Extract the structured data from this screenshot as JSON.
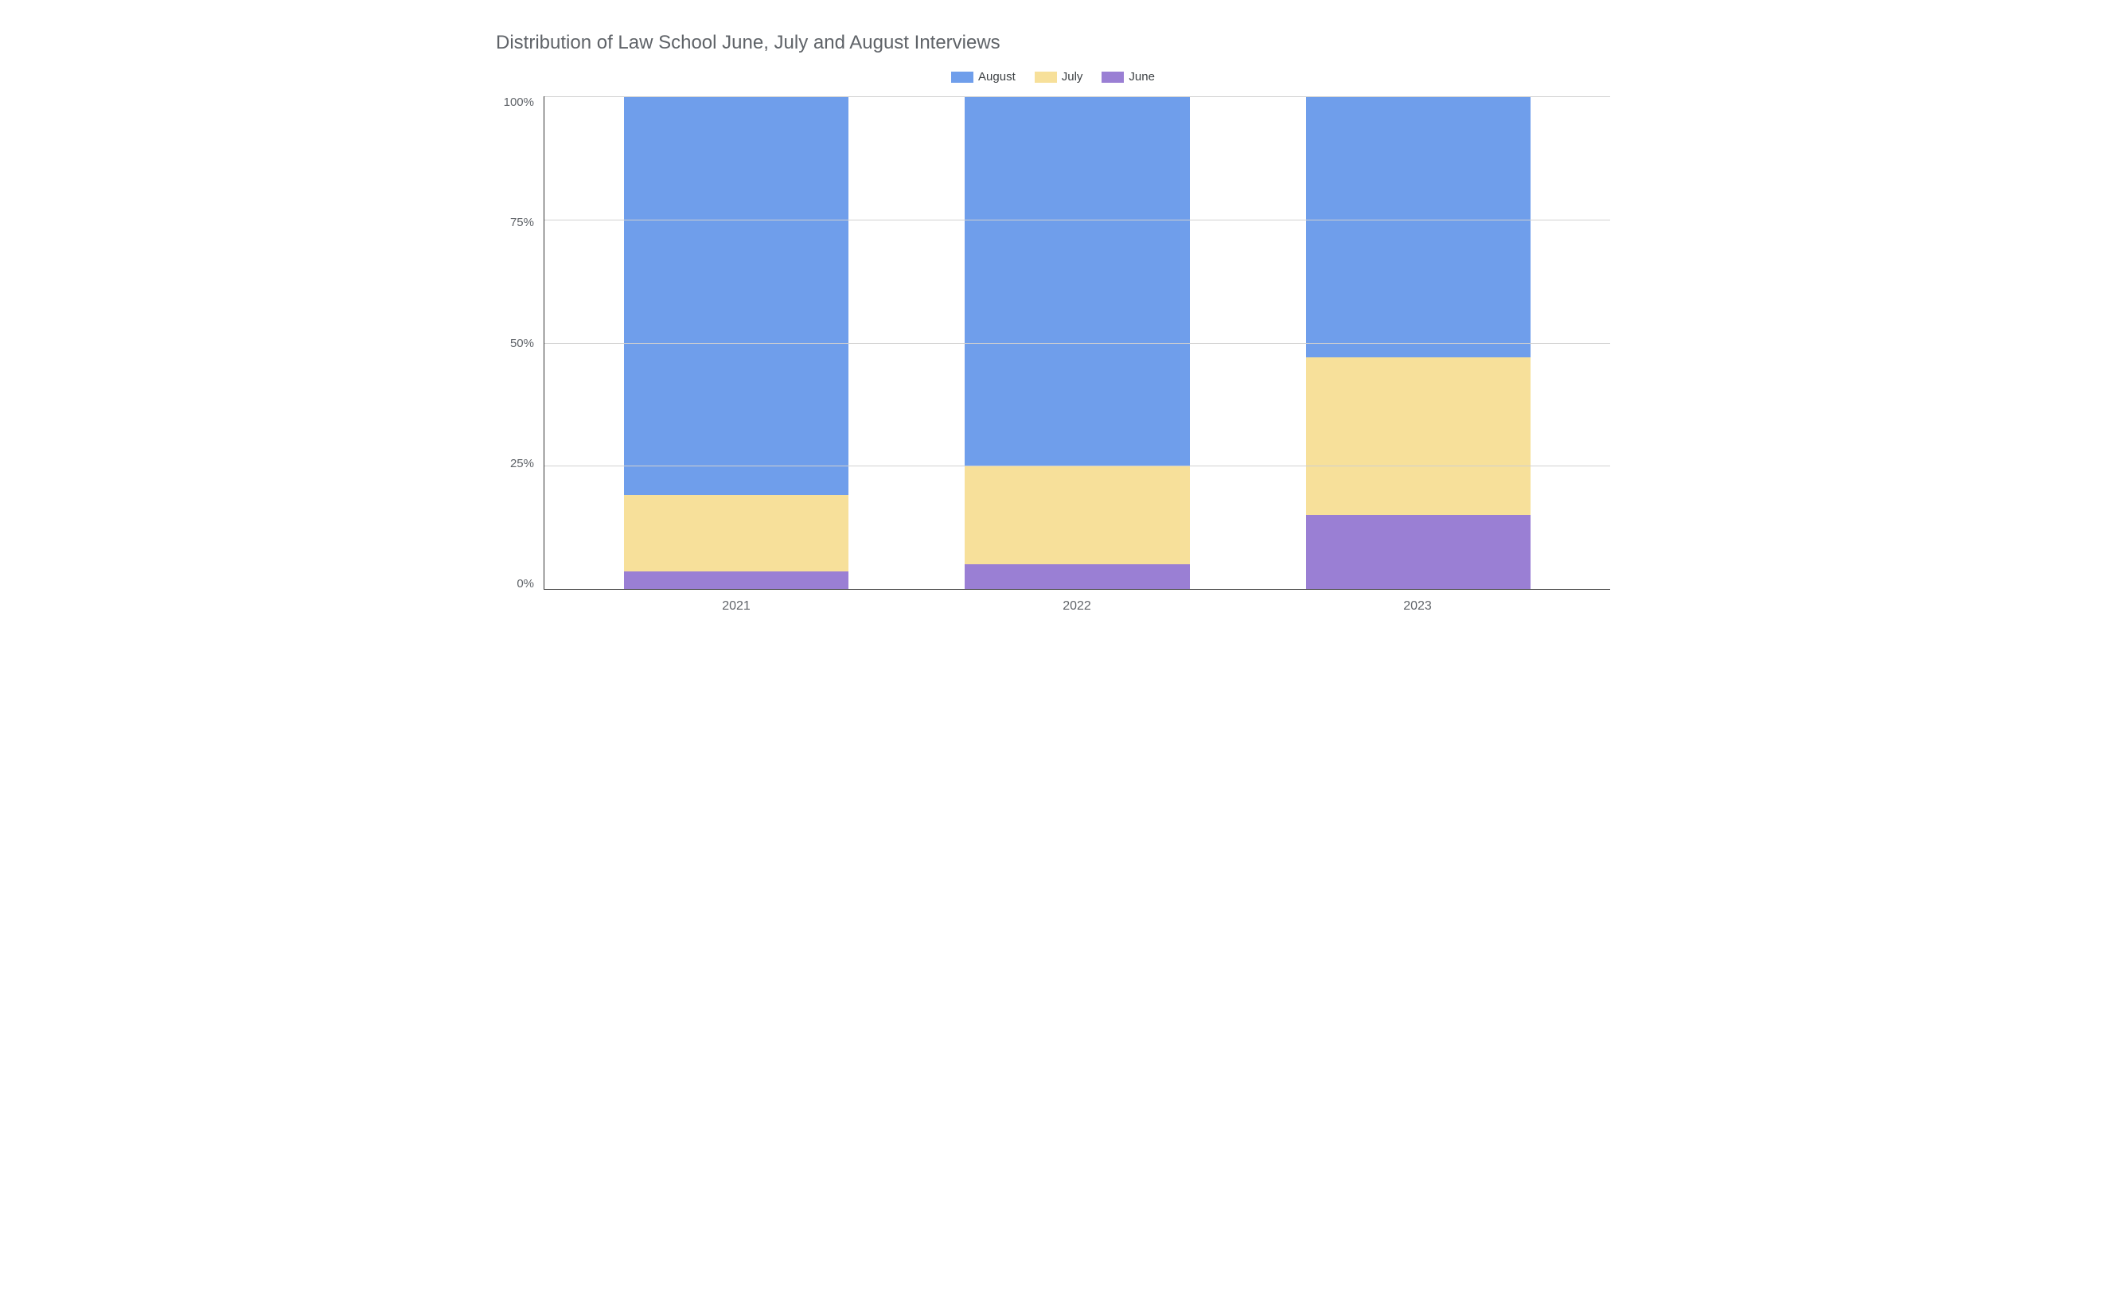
{
  "chart": {
    "type": "stacked-bar-100",
    "title": "Distribution of Law School June, July and August Interviews",
    "title_fontsize": 24,
    "title_color": "#5f6368",
    "background_color": "#ffffff",
    "grid_color": "#d0d0d0",
    "axis_text_color": "#5f6368",
    "axis_fontsize": 15,
    "legend": {
      "items": [
        {
          "label": "August",
          "color": "#6f9eeb"
        },
        {
          "label": "July",
          "color": "#f7e09a"
        },
        {
          "label": "June",
          "color": "#9a7fd4"
        }
      ],
      "fontsize": 15
    },
    "categories": [
      "2021",
      "2022",
      "2023"
    ],
    "series": [
      {
        "name": "August",
        "color": "#6f9eeb",
        "values": [
          81,
          75,
          53
        ]
      },
      {
        "name": "July",
        "color": "#f7e09a",
        "values": [
          15.5,
          20,
          32
        ]
      },
      {
        "name": "June",
        "color": "#9a7fd4",
        "values": [
          3.5,
          5,
          15
        ]
      }
    ],
    "ylim": [
      0,
      100
    ],
    "ytick_step": 25,
    "ytick_suffix": "%",
    "bar_width_pct": 22
  }
}
